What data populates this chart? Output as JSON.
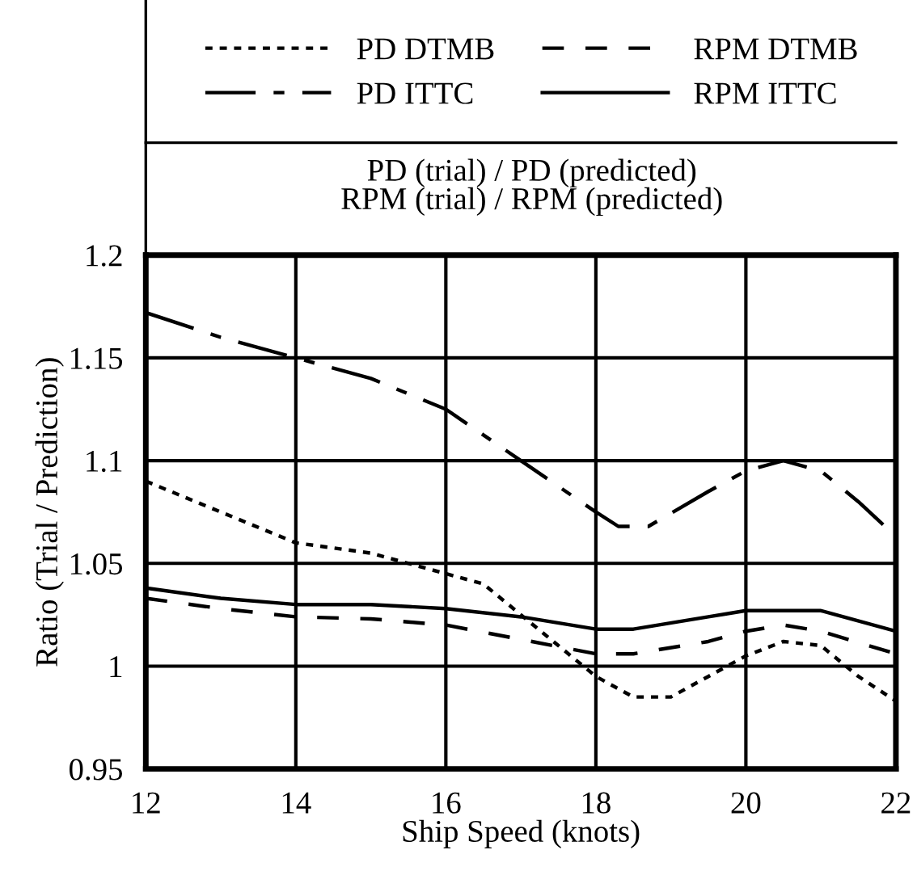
{
  "chart_data": {
    "type": "line",
    "title": "PD (trial) / PD (predicted)\nRPM (trial) / RPM (predicted)",
    "xlabel": "Ship Speed (knots)",
    "ylabel": "Ratio (Trial / Prediction)",
    "xlim": [
      12,
      22
    ],
    "ylim": [
      0.95,
      1.2
    ],
    "xticks": [
      12,
      14,
      16,
      18,
      20,
      22
    ],
    "yticks": [
      0.95,
      1,
      1.05,
      1.1,
      1.15,
      1.2
    ],
    "grid": true,
    "legend": "top",
    "marker": "none",
    "series": [
      {
        "name": "PD DTMB",
        "color": "#000000",
        "line_style": "dotted",
        "x": [
          12,
          13,
          14,
          15,
          16,
          16.5,
          17,
          17.5,
          18,
          18.5,
          19,
          19.5,
          20,
          20.5,
          21,
          21.5,
          22
        ],
        "values": [
          1.09,
          1.075,
          1.06,
          1.055,
          1.045,
          1.04,
          1.025,
          1.01,
          0.995,
          0.985,
          0.985,
          0.995,
          1.005,
          1.012,
          1.01,
          0.995,
          0.983
        ]
      },
      {
        "name": "PD ITTC",
        "color": "#000000",
        "line_style": "dashdot",
        "x": [
          12,
          13,
          14,
          15,
          16,
          17,
          18,
          18.3,
          18.7,
          19.5,
          20,
          20.5,
          21,
          21.5,
          22
        ],
        "values": [
          1.172,
          1.16,
          1.15,
          1.14,
          1.125,
          1.1,
          1.075,
          1.068,
          1.068,
          1.085,
          1.095,
          1.1,
          1.095,
          1.08,
          1.063
        ]
      },
      {
        "name": "RPM DTMB",
        "color": "#000000",
        "line_style": "dashed",
        "x": [
          12,
          13,
          14,
          15,
          16,
          17,
          18,
          18.5,
          19.5,
          20,
          20.5,
          21,
          22
        ],
        "values": [
          1.033,
          1.028,
          1.024,
          1.023,
          1.02,
          1.013,
          1.006,
          1.006,
          1.012,
          1.017,
          1.02,
          1.017,
          1.006
        ]
      },
      {
        "name": "RPM ITTC",
        "color": "#000000",
        "line_style": "solid",
        "x": [
          12,
          13,
          14,
          15,
          16,
          17,
          18,
          18.5,
          19.5,
          20,
          21,
          22
        ],
        "values": [
          1.038,
          1.033,
          1.03,
          1.03,
          1.028,
          1.024,
          1.018,
          1.018,
          1.024,
          1.027,
          1.027,
          1.017
        ]
      }
    ]
  }
}
